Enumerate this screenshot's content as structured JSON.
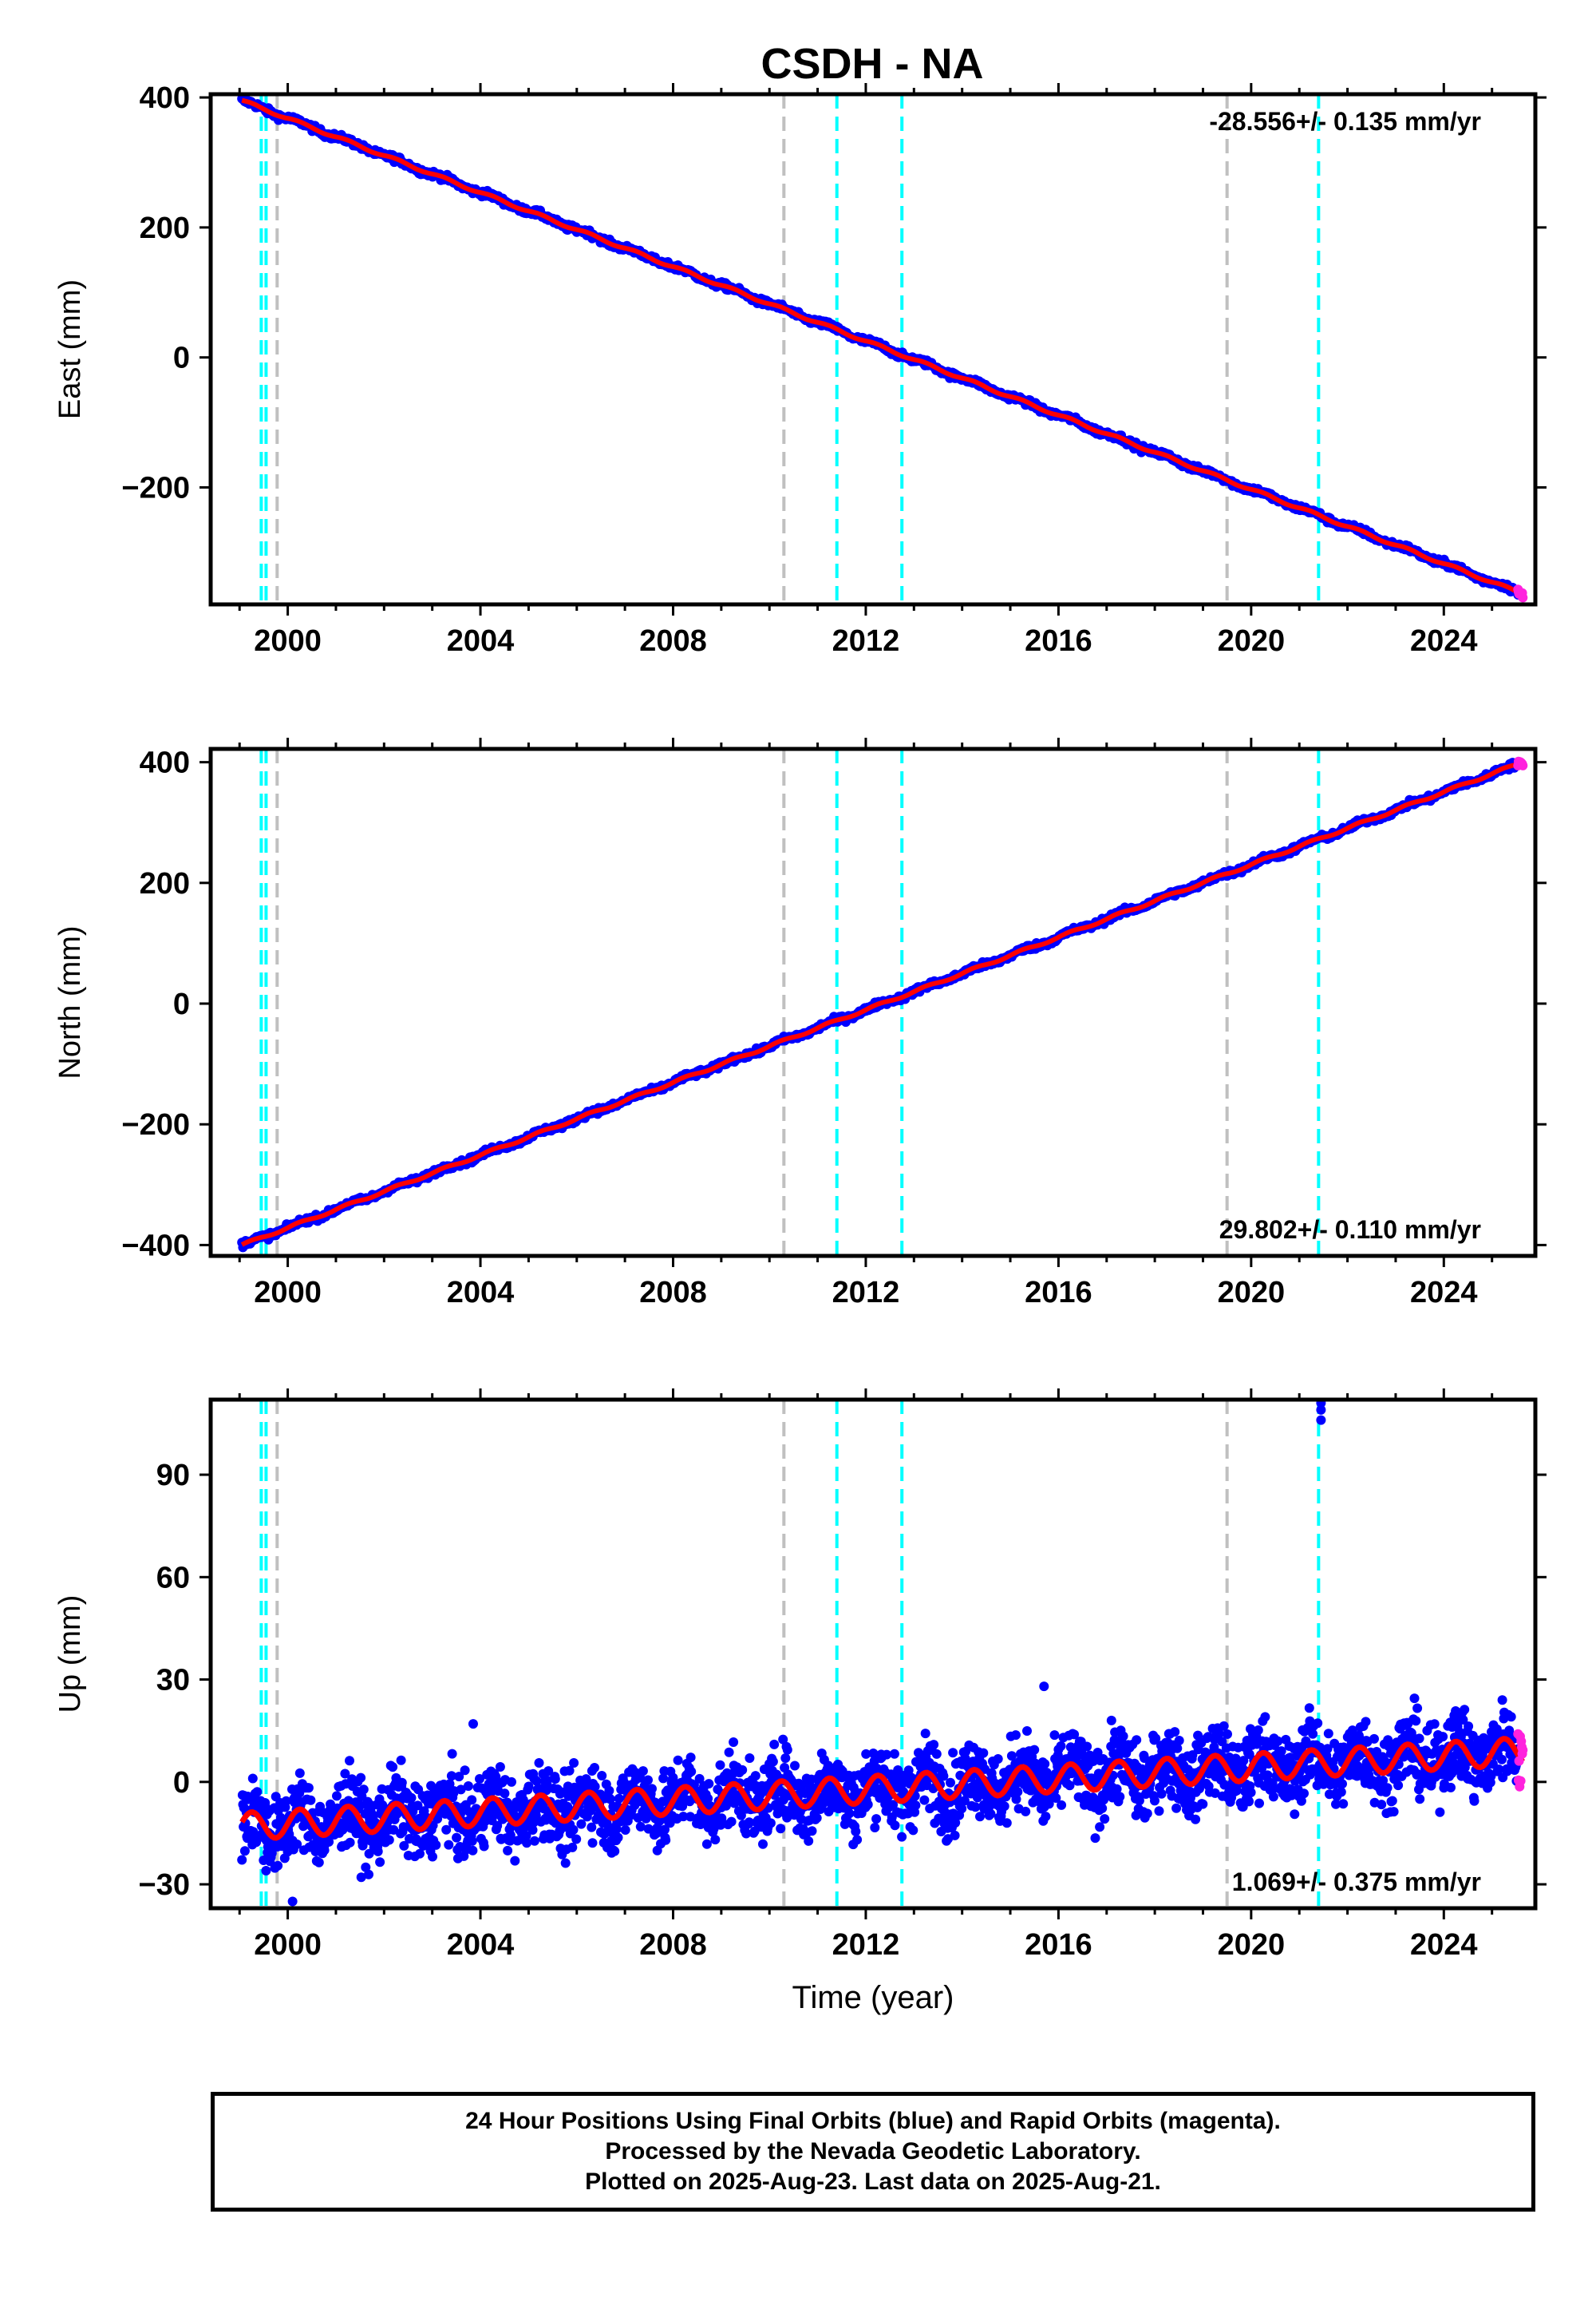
{
  "title": "CSDH - NA",
  "colors": {
    "final_orbits": "#0000ff",
    "rapid_orbits": "#ff22dd",
    "model_fit": "#ff0000",
    "antenna_change": "#00ffff",
    "other_event": "#c0c0c0",
    "frame": "#000000"
  },
  "chart_data": [
    {
      "type": "scatter",
      "ylabel": "East (mm)",
      "xlabel": "",
      "xlim": [
        1998.4,
        2025.9
      ],
      "ylim": [
        -380,
        405
      ],
      "xticks": [
        2000,
        2004,
        2008,
        2012,
        2016,
        2020,
        2024
      ],
      "yticks": [
        -200,
        0,
        200,
        400
      ],
      "rate_label": "-28.556+/- 0.135 mm/yr",
      "rate_position": "top-right",
      "start": {
        "t": 1999.05,
        "y": 395
      },
      "end": {
        "t": 2025.64,
        "y": -364
      },
      "seasonal_amplitude_mm": 2,
      "scatter_mm": 2.5,
      "events_cyan": [
        1999.45,
        1999.55,
        2011.4,
        2012.75,
        2021.4
      ],
      "events_gray": [
        1999.78,
        2010.3,
        2019.5
      ]
    },
    {
      "type": "scatter",
      "ylabel": "North (mm)",
      "xlabel": "",
      "xlim": [
        1998.4,
        2025.9
      ],
      "ylim": [
        -418,
        422
      ],
      "xticks": [
        2000,
        2004,
        2008,
        2012,
        2016,
        2020,
        2024
      ],
      "yticks": [
        -400,
        -200,
        0,
        200,
        400
      ],
      "rate_label": "29.802+/- 0.110 mm/yr",
      "rate_position": "bottom-right",
      "start": {
        "t": 1999.05,
        "y": -400
      },
      "end": {
        "t": 2025.64,
        "y": 400
      },
      "seasonal_amplitude_mm": 2,
      "scatter_mm": 2.5,
      "events_cyan": [
        1999.45,
        1999.55,
        2011.4,
        2012.75,
        2021.4
      ],
      "events_gray": [
        1999.78,
        2010.3,
        2019.5
      ]
    },
    {
      "type": "scatter",
      "ylabel": "Up (mm)",
      "xlabel": "Time (year)",
      "xlim": [
        1998.4,
        2025.9
      ],
      "ylim": [
        -37,
        112
      ],
      "xticks": [
        2000,
        2004,
        2008,
        2012,
        2016,
        2020,
        2024
      ],
      "yticks": [
        -30,
        0,
        30,
        60,
        90
      ],
      "rate_label": "1.069+/- 0.375 mm/yr",
      "rate_position": "bottom-right",
      "start": {
        "t": 1999.05,
        "y": -13
      },
      "end": {
        "t": 2025.64,
        "y": 9
      },
      "seasonal_amplitude_mm": 4,
      "scatter_mm": 5.5,
      "outliers": [
        {
          "t": 2021.45,
          "y": 109
        },
        {
          "t": 2021.45,
          "y": 106
        },
        {
          "t": 2021.45,
          "y": 111
        },
        {
          "t": 2003.85,
          "y": 17
        },
        {
          "t": 2015.7,
          "y": 28
        },
        {
          "t": 2000.1,
          "y": -35
        },
        {
          "t": 1999.55,
          "y": -26
        }
      ],
      "events_cyan": [
        1999.45,
        1999.55,
        2011.4,
        2012.75,
        2021.4
      ],
      "events_gray": [
        1999.78,
        2010.3,
        2019.5
      ]
    }
  ],
  "caption": {
    "line1": "24 Hour Positions Using Final Orbits (blue) and Rapid Orbits (magenta).",
    "line2": "Processed by the Nevada Geodetic Laboratory.",
    "line3": "Plotted on 2025-Aug-23. Last data on 2025-Aug-21."
  }
}
